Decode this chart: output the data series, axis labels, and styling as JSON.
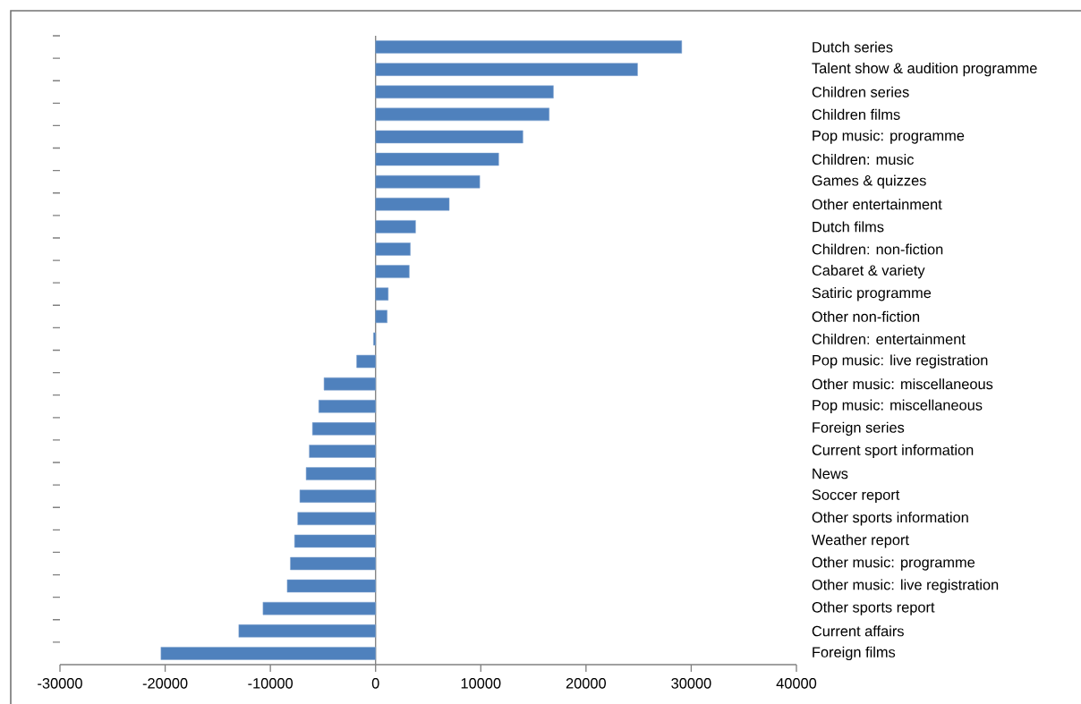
{
  "chart_data": {
    "type": "bar",
    "orientation": "horizontal",
    "categories": [
      "Dutch series",
      "Talent show & audition programme",
      "Children series",
      "Children films",
      "Pop music: programme",
      "Children: music",
      "Games & quizzes",
      "Other entertainment",
      "Dutch films",
      "Children: non-fiction",
      "Cabaret & variety",
      "Satiric programme",
      "Other non-fiction",
      "Children: entertainment",
      "Pop music: live registration",
      "Other music: miscellaneous",
      "Pop music: miscellaneous",
      "Foreign series",
      "Current sport information",
      "News",
      "Soccer report",
      "Other sports information",
      "Weather report",
      "Other music: programme",
      "Other music: live registration",
      "Other sports report",
      "Current affairs",
      "Foreign films"
    ],
    "values": [
      29100,
      24900,
      16900,
      16500,
      14000,
      11700,
      9900,
      7000,
      3800,
      3300,
      3200,
      1200,
      1100,
      -200,
      -1800,
      -4900,
      -5400,
      -6000,
      -6300,
      -6600,
      -7200,
      -7400,
      -7700,
      -8100,
      -8400,
      -10700,
      -13000,
      -20400
    ],
    "color": "#4f81bd",
    "xlim": [
      -30000,
      40000
    ],
    "xticks": [
      -30000,
      -20000,
      -10000,
      0,
      10000,
      20000,
      30000,
      40000
    ]
  }
}
